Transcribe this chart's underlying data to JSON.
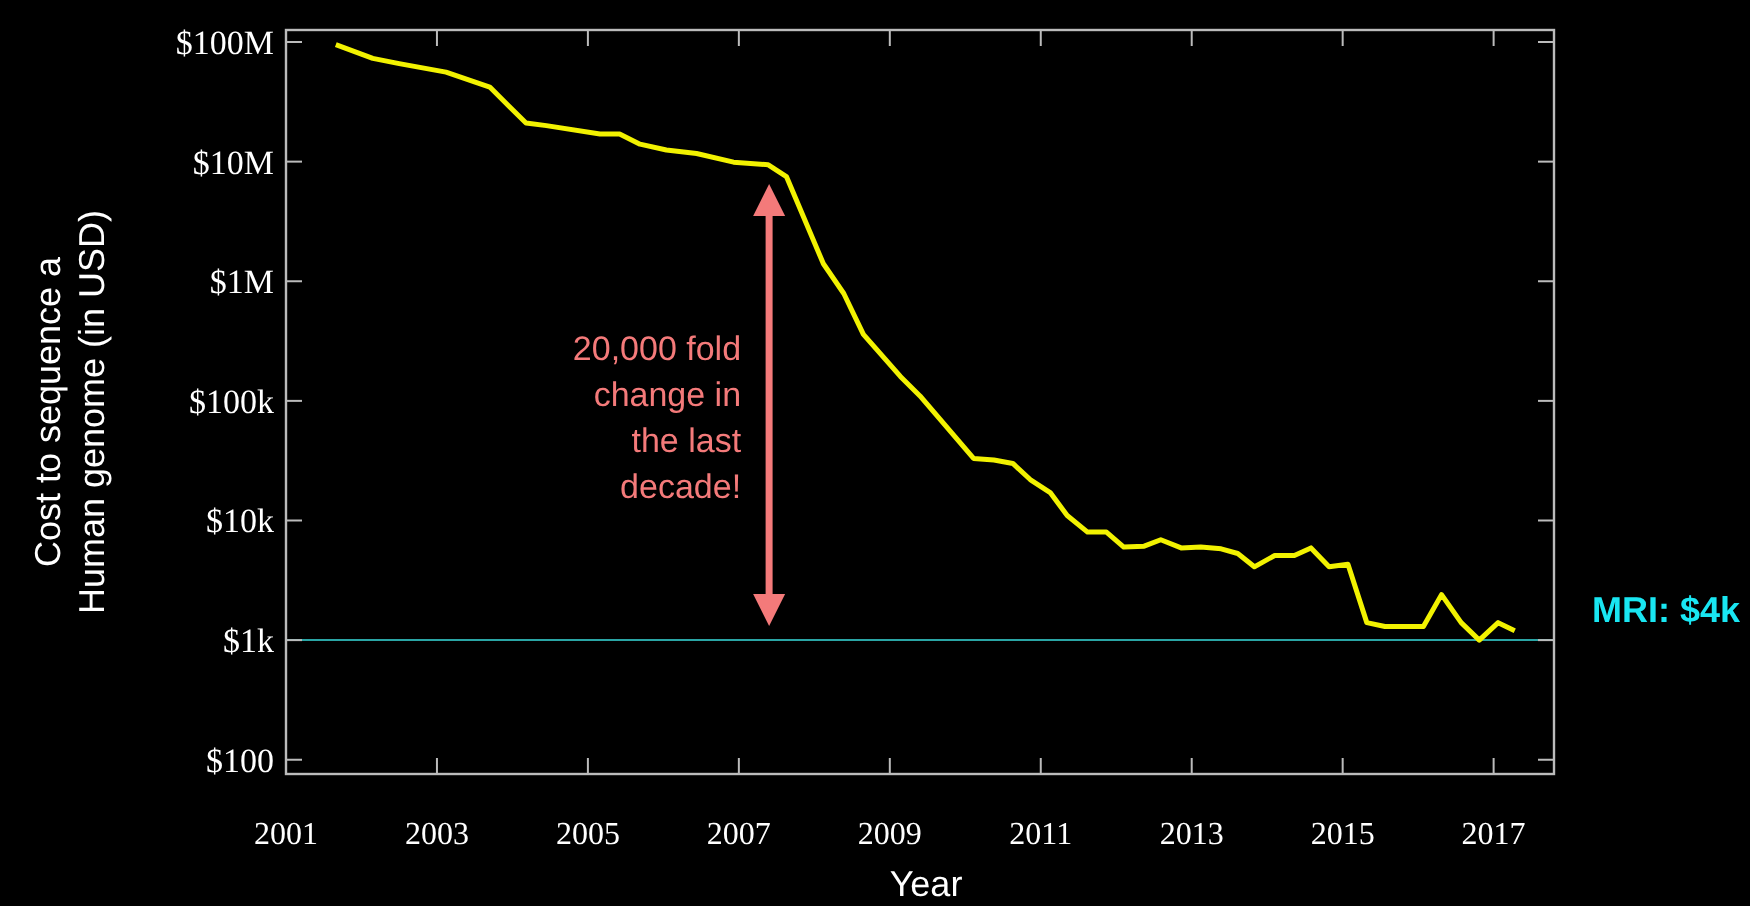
{
  "chart_data": {
    "type": "line",
    "xlabel": "Year",
    "ylabel": "Cost to sequence a\nHuman genome (in USD)",
    "log": true,
    "grid": false,
    "marker": "none",
    "line_style": "solid",
    "xlim": [
      2001,
      2017.8
    ],
    "xticks": [
      2001,
      2003,
      2005,
      2007,
      2009,
      2011,
      2013,
      2015,
      2017
    ],
    "ylim": [
      76,
      126000000
    ],
    "yticks": [
      {
        "value": 100,
        "label": "$100"
      },
      {
        "value": 1000,
        "label": "$1k"
      },
      {
        "value": 10000,
        "label": "$10k"
      },
      {
        "value": 100000,
        "label": "$100k"
      },
      {
        "value": 1000000,
        "label": "$1M"
      },
      {
        "value": 10000000,
        "label": "$10M"
      },
      {
        "value": 100000000,
        "label": "$100M"
      }
    ],
    "series": [
      {
        "color": "#f2f200",
        "x": [
          2001.66,
          2002.15,
          2002.5,
          2003.12,
          2003.7,
          2004.18,
          2004.45,
          2005.16,
          2005.42,
          2005.69,
          2006.04,
          2006.44,
          2006.93,
          2007.39,
          2007.63,
          2008.12,
          2008.39,
          2008.65,
          2009.14,
          2009.4,
          2010.11,
          2010.38,
          2010.63,
          2010.86,
          2011.13,
          2011.35,
          2011.62,
          2011.87,
          2012.1,
          2012.37,
          2012.59,
          2012.86,
          2013.12,
          2013.39,
          2013.61,
          2013.83,
          2014.1,
          2014.36,
          2014.58,
          2014.82,
          2015.07,
          2015.32,
          2015.56,
          2016.07,
          2016.31,
          2016.57,
          2016.81,
          2017.06,
          2017.28
        ],
        "values": [
          95000000,
          73000000,
          66000000,
          56000000,
          42000000,
          21000000,
          20000000,
          17000000,
          17000000,
          14000000,
          12500000,
          11700000,
          9900000,
          9400000,
          7500000,
          1400000,
          790000,
          360000,
          160000,
          110000,
          33000,
          32000,
          30000,
          22000,
          17000,
          11000,
          8000,
          8000,
          6000,
          6100,
          6900,
          5900,
          6000,
          5800,
          5300,
          4100,
          5100,
          5100,
          5900,
          4100,
          4300,
          1400,
          1300,
          1300,
          2400,
          1400,
          1000,
          1400,
          1200
        ]
      }
    ],
    "ref_lines": [
      {
        "axis": "y",
        "value": 1000,
        "color": "#2aa5a5"
      }
    ],
    "annotations": [
      "20,000 fold change in the last decade!",
      "MRI: $4k"
    ]
  }
}
